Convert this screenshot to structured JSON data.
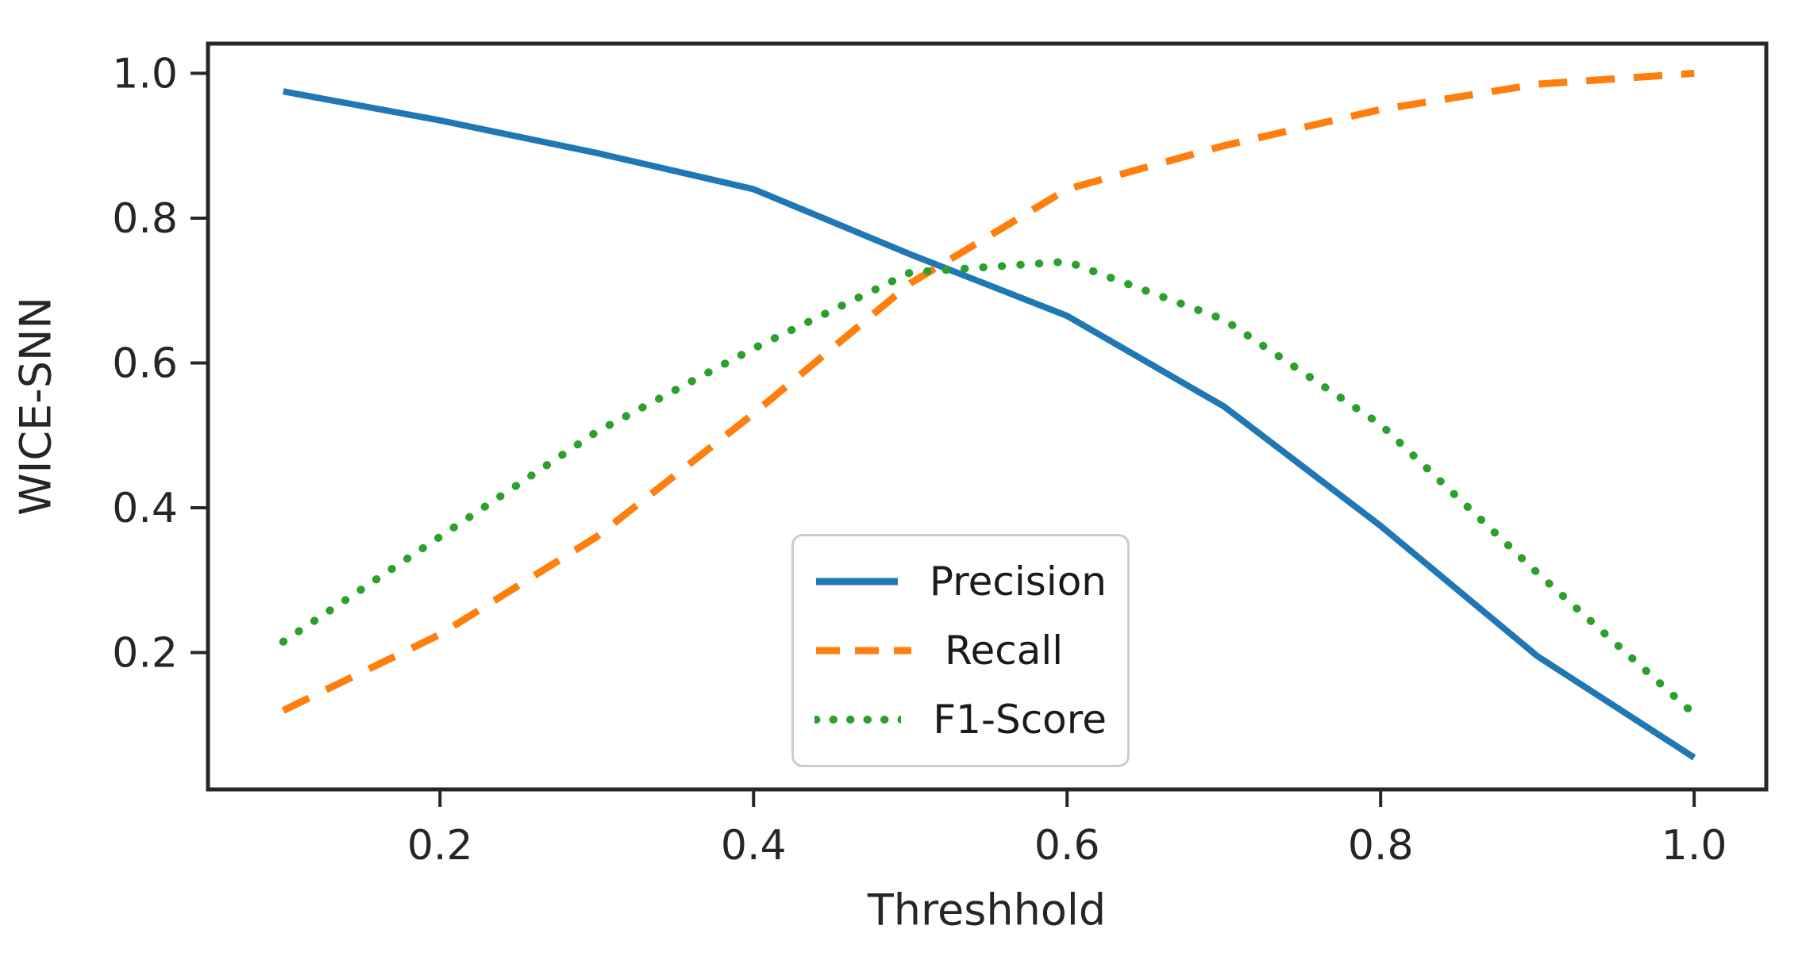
{
  "figure": {
    "background_color": "#ffffff",
    "axis_color": "#262626",
    "tick_label_color": "#262626",
    "legend_border_color": "#cccccc",
    "legend_text_color": "#1a1a1a"
  },
  "chart_data": {
    "type": "line",
    "title": "",
    "xlabel": "Threshhold",
    "ylabel": "WICE-SNN",
    "x": [
      0.1,
      0.2,
      0.3,
      0.4,
      0.5,
      0.6,
      0.7,
      0.8,
      0.9,
      1.0
    ],
    "series": [
      {
        "name": "Precision",
        "color": "#1f77b4",
        "style": "solid",
        "values": [
          0.975,
          0.935,
          0.89,
          0.84,
          0.75,
          0.665,
          0.54,
          0.375,
          0.195,
          0.055
        ]
      },
      {
        "name": "Recall",
        "color": "#ff7f0e",
        "style": "dashed",
        "values": [
          0.12,
          0.225,
          0.36,
          0.53,
          0.71,
          0.84,
          0.9,
          0.95,
          0.985,
          1.0
        ]
      },
      {
        "name": "F1-Score",
        "color": "#2ca02c",
        "style": "dotted",
        "values": [
          0.215,
          0.36,
          0.505,
          0.62,
          0.725,
          0.74,
          0.66,
          0.515,
          0.31,
          0.115
        ]
      }
    ],
    "xticks": [
      0.2,
      0.4,
      0.6,
      0.8,
      1.0
    ],
    "yticks": [
      0.2,
      0.4,
      0.6,
      0.8,
      1.0
    ],
    "xlim": [
      0.052,
      1.046
    ],
    "ylim": [
      0.011,
      1.041
    ],
    "grid": false,
    "legend_position": "center-bottom"
  }
}
